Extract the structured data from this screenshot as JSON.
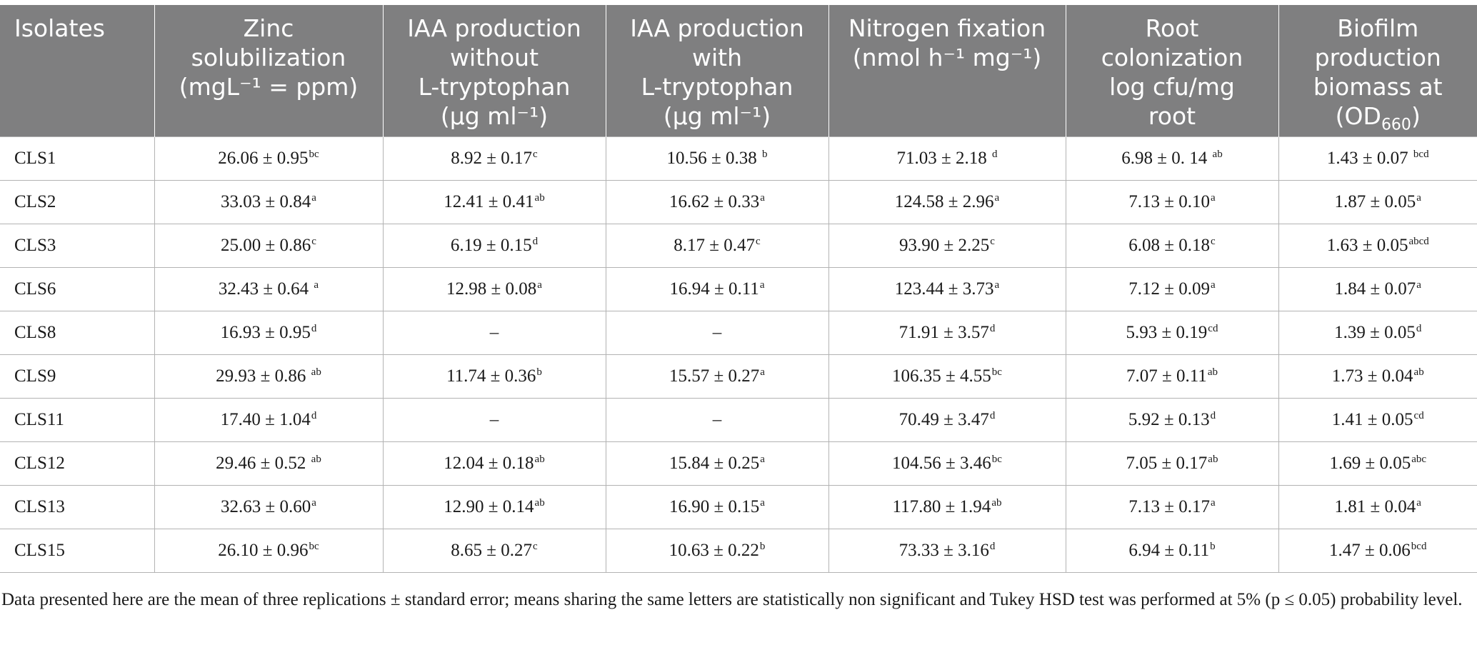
{
  "table": {
    "headers": [
      {
        "lines": [
          "Isolates"
        ]
      },
      {
        "lines": [
          "Zinc",
          "solubilization",
          "(mgL⁻¹ = ppm)"
        ]
      },
      {
        "lines": [
          "IAA production",
          "without",
          "L-tryptophan",
          "(µg ml⁻¹)"
        ]
      },
      {
        "lines": [
          "IAA production",
          "with",
          "L-tryptophan",
          "(µg ml⁻¹)"
        ]
      },
      {
        "lines": [
          "Nitrogen fixation",
          "(nmol h⁻¹ mg⁻¹)"
        ]
      },
      {
        "lines": [
          "Root",
          "colonization",
          "log cfu/mg",
          "root"
        ]
      },
      {
        "lines": [
          "Biofilm",
          "production",
          "biomass at"
        ],
        "od_main": "(OD",
        "od_sub": "660",
        "od_close": ")"
      }
    ],
    "rows": [
      {
        "isolate": "CLS1",
        "cells": [
          {
            "v": "26.06 ± 0.95",
            "s": "bc"
          },
          {
            "v": "8.92 ± 0.17",
            "s": "c"
          },
          {
            "v": "10.56 ± 0.38 ",
            "s": "b"
          },
          {
            "v": "71.03 ± 2.18 ",
            "s": "d"
          },
          {
            "v": "6.98 ± 0. 14 ",
            "s": "ab"
          },
          {
            "v": "1.43 ± 0.07 ",
            "s": "bcd"
          }
        ]
      },
      {
        "isolate": "CLS2",
        "cells": [
          {
            "v": "33.03 ± 0.84",
            "s": "a"
          },
          {
            "v": "12.41 ± 0.41",
            "s": "ab"
          },
          {
            "v": "16.62 ± 0.33",
            "s": "a"
          },
          {
            "v": "124.58 ± 2.96",
            "s": "a"
          },
          {
            "v": "7.13 ± 0.10",
            "s": "a"
          },
          {
            "v": "1.87 ± 0.05",
            "s": "a"
          }
        ]
      },
      {
        "isolate": "CLS3",
        "cells": [
          {
            "v": "25.00 ± 0.86",
            "s": "c"
          },
          {
            "v": "6.19 ± 0.15",
            "s": "d"
          },
          {
            "v": "8.17 ± 0.47",
            "s": "c"
          },
          {
            "v": "93.90 ± 2.25",
            "s": "c"
          },
          {
            "v": "6.08 ± 0.18",
            "s": "c"
          },
          {
            "v": "1.63 ± 0.05",
            "s": "abcd"
          }
        ]
      },
      {
        "isolate": "CLS6",
        "cells": [
          {
            "v": "32.43 ± 0.64 ",
            "s": "a"
          },
          {
            "v": "12.98 ± 0.08",
            "s": "a"
          },
          {
            "v": "16.94 ± 0.11",
            "s": "a"
          },
          {
            "v": "123.44 ± 3.73",
            "s": "a"
          },
          {
            "v": "7.12 ± 0.09",
            "s": "a"
          },
          {
            "v": "1.84 ± 0.07",
            "s": "a"
          }
        ]
      },
      {
        "isolate": "CLS8",
        "cells": [
          {
            "v": "16.93 ± 0.95",
            "s": "d"
          },
          {
            "v": "–",
            "s": ""
          },
          {
            "v": "–",
            "s": ""
          },
          {
            "v": "71.91 ± 3.57",
            "s": "d"
          },
          {
            "v": "5.93 ± 0.19",
            "s": "cd"
          },
          {
            "v": "1.39 ± 0.05",
            "s": "d"
          }
        ]
      },
      {
        "isolate": "CLS9",
        "cells": [
          {
            "v": "29.93 ± 0.86 ",
            "s": "ab"
          },
          {
            "v": "11.74 ± 0.36",
            "s": "b"
          },
          {
            "v": "15.57 ± 0.27",
            "s": "a"
          },
          {
            "v": "106.35 ± 4.55",
            "s": "bc"
          },
          {
            "v": "7.07 ± 0.11",
            "s": "ab"
          },
          {
            "v": "1.73 ± 0.04",
            "s": "ab"
          }
        ]
      },
      {
        "isolate": "CLS11",
        "cells": [
          {
            "v": "17.40 ± 1.04",
            "s": "d"
          },
          {
            "v": "–",
            "s": ""
          },
          {
            "v": "–",
            "s": ""
          },
          {
            "v": "70.49 ± 3.47",
            "s": "d"
          },
          {
            "v": "5.92 ± 0.13",
            "s": "d"
          },
          {
            "v": "1.41 ± 0.05",
            "s": "cd"
          }
        ]
      },
      {
        "isolate": "CLS12",
        "cells": [
          {
            "v": "29.46 ± 0.52 ",
            "s": "ab"
          },
          {
            "v": "12.04 ± 0.18",
            "s": "ab"
          },
          {
            "v": "15.84 ± 0.25",
            "s": "a"
          },
          {
            "v": "104.56 ± 3.46",
            "s": "bc"
          },
          {
            "v": "7.05 ± 0.17",
            "s": "ab"
          },
          {
            "v": "1.69 ± 0.05",
            "s": "abc"
          }
        ]
      },
      {
        "isolate": "CLS13",
        "cells": [
          {
            "v": "32.63 ± 0.60",
            "s": "a"
          },
          {
            "v": "12.90 ± 0.14",
            "s": "ab"
          },
          {
            "v": "16.90 ± 0.15",
            "s": "a"
          },
          {
            "v": "117.80 ± 1.94",
            "s": "ab"
          },
          {
            "v": "7.13 ± 0.17",
            "s": "a"
          },
          {
            "v": "1.81 ± 0.04",
            "s": "a"
          }
        ]
      },
      {
        "isolate": "CLS15",
        "cells": [
          {
            "v": "26.10 ± 0.96",
            "s": "bc"
          },
          {
            "v": "8.65 ± 0.27",
            "s": "c"
          },
          {
            "v": "10.63 ± 0.22",
            "s": "b"
          },
          {
            "v": "73.33 ± 3.16",
            "s": "d"
          },
          {
            "v": "6.94 ± 0.11",
            "s": "b"
          },
          {
            "v": "1.47 ± 0.06",
            "s": "bcd"
          }
        ]
      }
    ]
  },
  "footnote": "Data presented here are the mean of three replications ± standard error; means sharing the same letters are statistically non significant and Tukey HSD test was performed at 5% (p ≤ 0.05) probability level."
}
